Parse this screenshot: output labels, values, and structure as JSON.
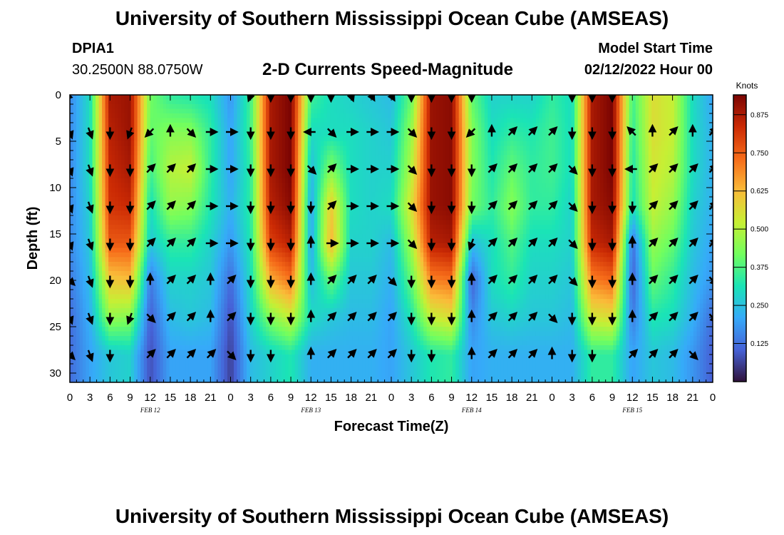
{
  "header": {
    "title": "University of Southern Mississippi Ocean Cube (AMSEAS)",
    "station_id": "DPIA1",
    "station_coords": "30.2500N  88.0750W",
    "subtitle": "2-D Currents Speed-Magnitude",
    "model_start_label": "Model Start Time",
    "model_start_value": "02/12/2022 Hour 00"
  },
  "footer": {
    "title": "University of Southern Mississippi Ocean Cube (AMSEAS)"
  },
  "chart_data": {
    "type": "heatmap",
    "title": "2-D Currents Speed-Magnitude",
    "xlabel": "Forecast Time(Z)",
    "ylabel": "Depth (ft)",
    "x_hours": [
      0,
      96
    ],
    "ylim": [
      0,
      31
    ],
    "x_tick_labels": [
      "0",
      "3",
      "6",
      "9",
      "12",
      "15",
      "18",
      "21",
      "0",
      "3",
      "6",
      "9",
      "12",
      "15",
      "18",
      "21",
      "0",
      "3",
      "6",
      "9",
      "12",
      "15",
      "18",
      "21",
      "0",
      "3",
      "6",
      "9",
      "12",
      "15",
      "18",
      "21",
      "0"
    ],
    "y_tick_labels": [
      "0",
      "5",
      "10",
      "15",
      "20",
      "25",
      "30"
    ],
    "date_labels": [
      {
        "hour": 12,
        "label": "FEB 12"
      },
      {
        "hour": 36,
        "label": "FEB 13"
      },
      {
        "hour": 60,
        "label": "FEB 14"
      },
      {
        "hour": 84,
        "label": "FEB 15"
      }
    ],
    "colorbar": {
      "label": "Knots",
      "min": 0,
      "max": 0.94,
      "ticks": [
        "0.125",
        "0.250",
        "0.375",
        "0.500",
        "0.625",
        "0.750",
        "0.875"
      ],
      "colors": [
        "#30123b",
        "#4662d7",
        "#36aaf9",
        "#1ae4b6",
        "#72fe5e",
        "#c7ef34",
        "#fabb39",
        "#f66b19",
        "#cb2a04",
        "#7a0403"
      ]
    },
    "depths_ft": [
      0,
      4,
      8,
      12,
      16,
      20,
      24,
      28
    ],
    "hours": [
      0,
      3,
      6,
      9,
      12,
      15,
      18,
      21,
      24,
      27,
      30,
      33,
      36,
      39,
      42,
      45,
      48,
      51,
      54,
      57,
      60,
      63,
      66,
      69,
      72,
      75,
      78,
      81,
      84,
      87,
      90,
      93,
      96
    ],
    "speed_knots": [
      [
        0.16,
        0.3,
        0.88,
        0.9,
        0.42,
        0.34,
        0.32,
        0.3,
        0.18,
        0.36,
        0.88,
        0.94,
        0.36,
        0.3,
        0.28,
        0.26,
        0.24,
        0.4,
        0.9,
        0.92,
        0.4,
        0.28,
        0.28,
        0.28,
        0.34,
        0.3,
        0.88,
        0.94,
        0.36,
        0.56,
        0.52,
        0.3,
        0.2
      ],
      [
        0.16,
        0.3,
        0.86,
        0.9,
        0.4,
        0.44,
        0.44,
        0.34,
        0.2,
        0.36,
        0.88,
        0.94,
        0.3,
        0.3,
        0.3,
        0.28,
        0.26,
        0.46,
        0.9,
        0.92,
        0.44,
        0.3,
        0.34,
        0.32,
        0.36,
        0.3,
        0.88,
        0.94,
        0.34,
        0.56,
        0.52,
        0.3,
        0.22
      ],
      [
        0.16,
        0.3,
        0.84,
        0.88,
        0.36,
        0.5,
        0.52,
        0.34,
        0.2,
        0.34,
        0.88,
        0.94,
        0.24,
        0.44,
        0.3,
        0.28,
        0.28,
        0.5,
        0.9,
        0.92,
        0.44,
        0.32,
        0.4,
        0.34,
        0.36,
        0.3,
        0.88,
        0.94,
        0.32,
        0.54,
        0.5,
        0.3,
        0.22
      ],
      [
        0.16,
        0.28,
        0.82,
        0.84,
        0.3,
        0.46,
        0.44,
        0.32,
        0.22,
        0.34,
        0.86,
        0.92,
        0.2,
        0.6,
        0.3,
        0.28,
        0.3,
        0.56,
        0.9,
        0.92,
        0.42,
        0.34,
        0.44,
        0.34,
        0.34,
        0.28,
        0.88,
        0.92,
        0.3,
        0.52,
        0.46,
        0.28,
        0.22
      ],
      [
        0.16,
        0.26,
        0.76,
        0.76,
        0.26,
        0.34,
        0.34,
        0.28,
        0.18,
        0.32,
        0.8,
        0.86,
        0.2,
        0.64,
        0.28,
        0.28,
        0.24,
        0.48,
        0.86,
        0.88,
        0.24,
        0.3,
        0.38,
        0.3,
        0.3,
        0.28,
        0.84,
        0.88,
        0.12,
        0.46,
        0.4,
        0.26,
        0.2
      ],
      [
        0.14,
        0.24,
        0.6,
        0.62,
        0.14,
        0.28,
        0.28,
        0.26,
        0.12,
        0.3,
        0.64,
        0.72,
        0.24,
        0.4,
        0.26,
        0.26,
        0.22,
        0.4,
        0.7,
        0.72,
        0.1,
        0.3,
        0.34,
        0.28,
        0.28,
        0.26,
        0.7,
        0.74,
        0.1,
        0.4,
        0.34,
        0.24,
        0.18
      ],
      [
        0.12,
        0.22,
        0.46,
        0.44,
        0.1,
        0.24,
        0.26,
        0.24,
        0.08,
        0.28,
        0.44,
        0.52,
        0.3,
        0.26,
        0.24,
        0.24,
        0.2,
        0.32,
        0.52,
        0.56,
        0.16,
        0.26,
        0.28,
        0.26,
        0.26,
        0.24,
        0.54,
        0.56,
        0.14,
        0.32,
        0.3,
        0.22,
        0.12
      ],
      [
        0.12,
        0.2,
        0.26,
        0.28,
        0.08,
        0.2,
        0.2,
        0.2,
        0.06,
        0.24,
        0.28,
        0.32,
        0.22,
        0.22,
        0.22,
        0.22,
        0.2,
        0.26,
        0.32,
        0.34,
        0.2,
        0.22,
        0.22,
        0.22,
        0.22,
        0.22,
        0.34,
        0.34,
        0.2,
        0.26,
        0.24,
        0.18,
        0.1
      ]
    ],
    "direction_deg": [
      [
        225,
        null,
        null,
        null,
        null,
        null,
        null,
        null,
        null,
        200,
        180,
        180,
        180,
        180,
        160,
        150,
        150,
        180,
        180,
        180,
        180,
        null,
        null,
        null,
        null,
        180,
        180,
        180,
        null,
        null,
        null,
        null,
        null
      ],
      [
        160,
        160,
        180,
        200,
        225,
        0,
        135,
        90,
        90,
        180,
        180,
        180,
        270,
        135,
        90,
        90,
        90,
        135,
        180,
        180,
        225,
        0,
        45,
        45,
        45,
        180,
        180,
        180,
        315,
        0,
        45,
        0,
        45
      ],
      [
        160,
        160,
        180,
        180,
        45,
        45,
        45,
        90,
        90,
        180,
        180,
        180,
        135,
        45,
        90,
        90,
        90,
        135,
        180,
        180,
        180,
        45,
        45,
        45,
        45,
        135,
        180,
        180,
        270,
        45,
        45,
        45,
        45
      ],
      [
        160,
        160,
        180,
        180,
        45,
        45,
        45,
        90,
        90,
        180,
        180,
        180,
        180,
        45,
        90,
        90,
        90,
        135,
        180,
        180,
        180,
        45,
        45,
        45,
        45,
        135,
        180,
        180,
        180,
        45,
        45,
        45,
        45
      ],
      [
        160,
        160,
        180,
        180,
        45,
        45,
        45,
        90,
        90,
        180,
        180,
        180,
        0,
        90,
        90,
        90,
        90,
        135,
        180,
        180,
        200,
        45,
        45,
        45,
        45,
        135,
        180,
        180,
        0,
        45,
        45,
        45,
        45
      ],
      [
        135,
        160,
        180,
        180,
        0,
        45,
        45,
        0,
        45,
        180,
        180,
        180,
        0,
        45,
        45,
        45,
        135,
        180,
        180,
        180,
        0,
        45,
        45,
        45,
        45,
        135,
        180,
        180,
        0,
        45,
        45,
        45,
        135
      ],
      [
        160,
        160,
        180,
        200,
        135,
        45,
        45,
        0,
        45,
        180,
        180,
        180,
        0,
        45,
        45,
        45,
        45,
        180,
        180,
        180,
        0,
        45,
        45,
        45,
        135,
        180,
        180,
        180,
        0,
        45,
        45,
        45,
        135
      ],
      [
        135,
        160,
        180,
        null,
        45,
        45,
        45,
        45,
        135,
        180,
        180,
        null,
        0,
        45,
        45,
        45,
        45,
        180,
        180,
        null,
        0,
        45,
        45,
        45,
        0,
        180,
        180,
        null,
        45,
        45,
        45,
        135,
        null
      ]
    ]
  }
}
